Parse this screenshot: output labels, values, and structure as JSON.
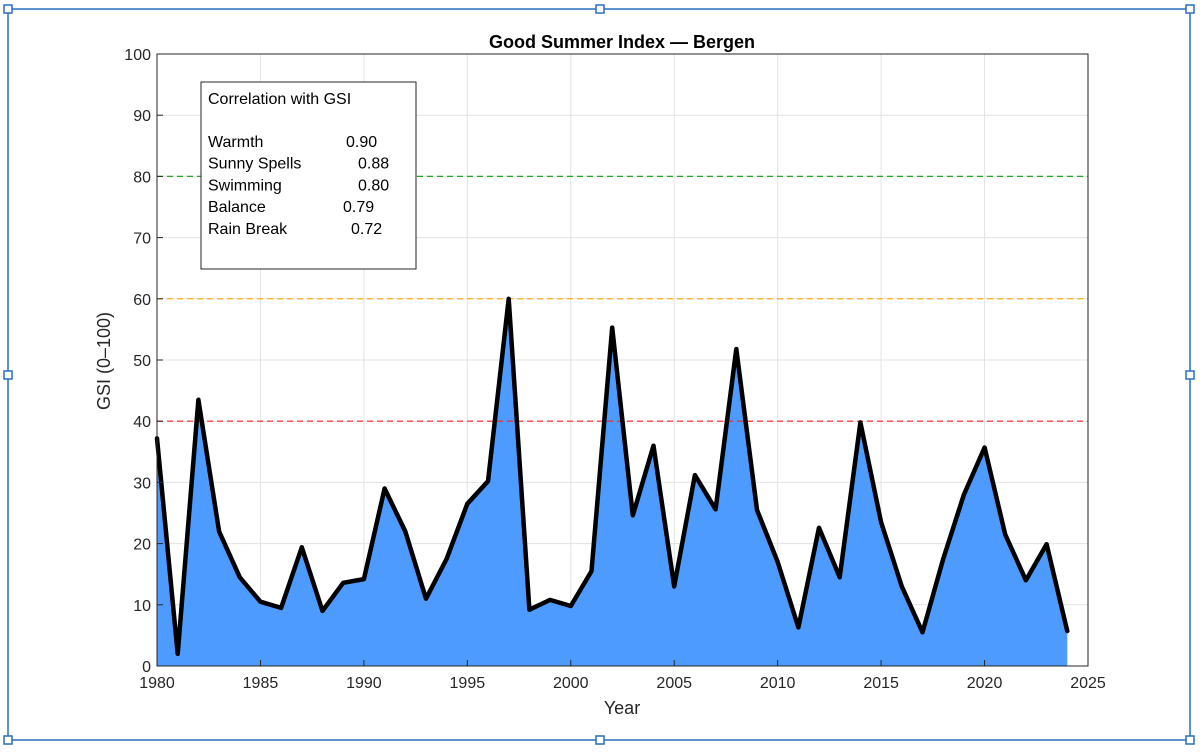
{
  "chart_data": {
    "type": "area",
    "title": "Good Summer Index — Bergen",
    "xlabel": "Year",
    "ylabel": "GSI (0–100)",
    "xlim": [
      1980,
      2025
    ],
    "ylim": [
      0,
      100
    ],
    "xticks": [
      1980,
      1985,
      1990,
      1995,
      2000,
      2005,
      2010,
      2015,
      2020,
      2025
    ],
    "yticks": [
      0,
      10,
      20,
      30,
      40,
      50,
      60,
      70,
      80,
      90,
      100
    ],
    "grid": true,
    "fill_color": "#4d9bff",
    "line_color": "#000000",
    "x": [
      1980,
      1981,
      1982,
      1983,
      1984,
      1985,
      1986,
      1987,
      1988,
      1989,
      1990,
      1991,
      1992,
      1993,
      1994,
      1995,
      1996,
      1997,
      1998,
      1999,
      2000,
      2001,
      2002,
      2003,
      2004,
      2005,
      2006,
      2007,
      2008,
      2009,
      2010,
      2011,
      2012,
      2013,
      2014,
      2015,
      2016,
      2017,
      2018,
      2019,
      2020,
      2021,
      2022,
      2023,
      2024
    ],
    "values": [
      37.2,
      2.0,
      43.5,
      22.0,
      14.5,
      10.5,
      9.5,
      19.4,
      9.0,
      13.6,
      14.2,
      29.0,
      22.0,
      11.0,
      17.5,
      26.5,
      30.2,
      60.0,
      9.2,
      10.8,
      9.8,
      15.5,
      55.3,
      24.6,
      36.0,
      13.0,
      31.2,
      25.6,
      51.8,
      25.5,
      17.0,
      6.3,
      22.6,
      14.5,
      39.8,
      23.5,
      13.0,
      5.5,
      17.5,
      28.0,
      35.7,
      21.5,
      14.0,
      19.9,
      5.7
    ],
    "thresholds": [
      {
        "value": 80,
        "color": "#2ca02c"
      },
      {
        "value": 60,
        "color": "#ffa500"
      },
      {
        "value": 40,
        "color": "#ff2020"
      }
    ],
    "legend": {
      "title": "Correlation with GSI",
      "placement": "top-left",
      "entries": [
        {
          "label": "Warmth",
          "value": "0.90"
        },
        {
          "label": "Sunny Spells",
          "value": "0.88"
        },
        {
          "label": "Swimming",
          "value": "0.80"
        },
        {
          "label": "Balance",
          "value": "0.79"
        },
        {
          "label": "Rain Break",
          "value": "0.72"
        }
      ]
    }
  }
}
